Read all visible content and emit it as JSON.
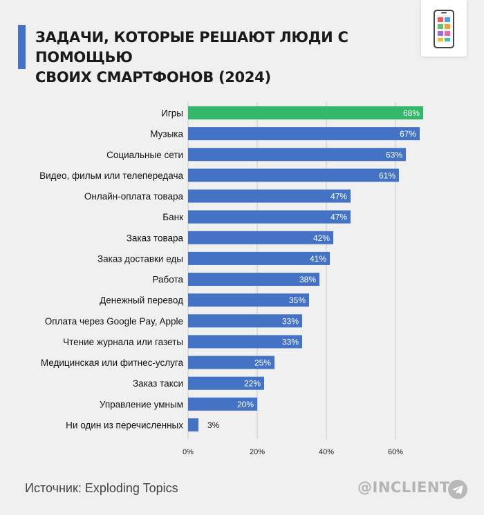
{
  "header": {
    "title_line1": "ЗАДАЧИ, КОТОРЫЕ РЕШАЮТ ЛЮДИ С ПОМОЩЬЮ",
    "title_line2": "СВОИХ СМАРТФОНОВ (2024)"
  },
  "footer": {
    "source": "Источник: Exploding Topics",
    "brand": "@INCLIENT"
  },
  "colors": {
    "accent": "#4472c4",
    "highlight": "#33b86b",
    "bar": "#4472c4"
  },
  "icons": {
    "header": "smartphone-apps-icon",
    "brand": "telegram-icon"
  },
  "chart_data": {
    "type": "bar",
    "orientation": "horizontal",
    "categories": [
      "Игры",
      "Музыка",
      "Социальные сети",
      "Видео, фильм или телепередача",
      "Онлайн-оплата товара",
      "Банк",
      "Заказ товара",
      "Заказ доставки еды",
      "Работа",
      "Денежный перевод",
      "Оплата через Google Pay, Apple",
      "Чтение журнала или газеты",
      "Медицинская или фитнес-услуга",
      "Заказ такси",
      "Управление умным",
      "Ни один из перечисленных"
    ],
    "values": [
      68,
      67,
      63,
      61,
      47,
      47,
      42,
      41,
      38,
      35,
      33,
      33,
      25,
      22,
      20,
      3
    ],
    "value_labels": [
      "68%",
      "67%",
      "63%",
      "61%",
      "47%",
      "47%",
      "42%",
      "41%",
      "38%",
      "35%",
      "33%",
      "33%",
      "25%",
      "22%",
      "20%",
      "3%"
    ],
    "highlight_index": 0,
    "xlim": [
      0,
      70
    ],
    "x_ticks": [
      0,
      20,
      40,
      60
    ],
    "x_tick_labels": [
      "0%",
      "20%",
      "40%",
      "60%"
    ],
    "grid": true,
    "legend": "none"
  }
}
